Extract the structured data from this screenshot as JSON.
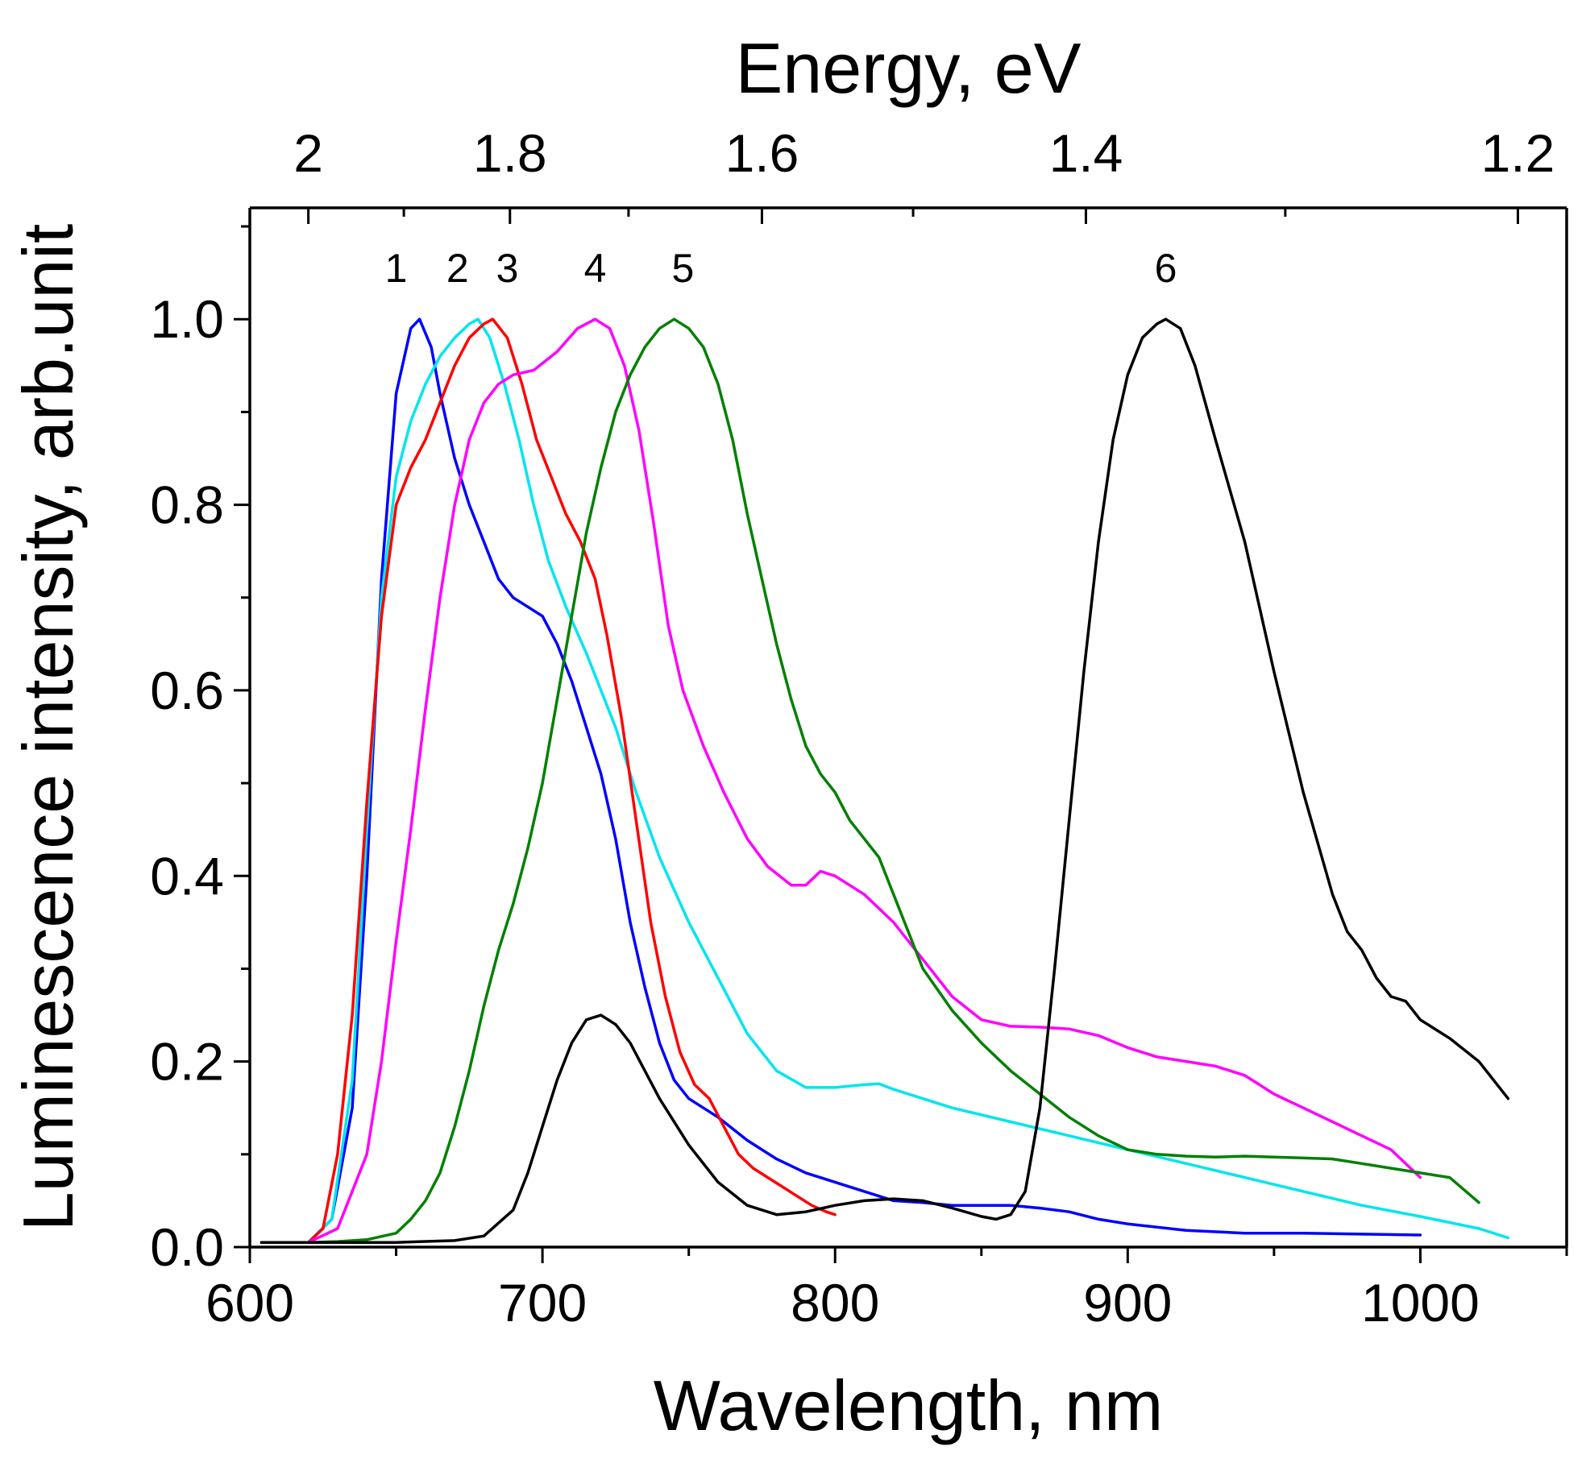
{
  "chart_data": {
    "type": "line",
    "xlabel": "Wavelength, nm",
    "ylabel": "Luminescence intensity, arb.unit",
    "x2label": "Energy, eV",
    "xlim": [
      600,
      1050
    ],
    "ylim": [
      0,
      1.12
    ],
    "x_ticks": [
      "600",
      "700",
      "800",
      "900",
      "1000"
    ],
    "y_ticks": [
      "0.0",
      "0.2",
      "0.4",
      "0.6",
      "0.8",
      "1.0"
    ],
    "x2_ticks": [
      {
        "energy": 2.0,
        "label": "2"
      },
      {
        "energy": 1.8,
        "label": "1.8"
      },
      {
        "energy": 1.6,
        "label": "1.6"
      },
      {
        "energy": 1.4,
        "label": "1.4"
      },
      {
        "energy": 1.2,
        "label": "1.2"
      }
    ],
    "x2_minor_ticks": [
      1.9,
      1.7,
      1.5,
      1.3
    ],
    "grid": false,
    "series": [
      {
        "name": "1",
        "color": "#0000ff",
        "label_x": 650,
        "points": [
          [
            604,
            0.005
          ],
          [
            620,
            0.005
          ],
          [
            628,
            0.03
          ],
          [
            635,
            0.15
          ],
          [
            640,
            0.4
          ],
          [
            645,
            0.72
          ],
          [
            650,
            0.92
          ],
          [
            655,
            0.99
          ],
          [
            658,
            1.0
          ],
          [
            662,
            0.97
          ],
          [
            665,
            0.92
          ],
          [
            670,
            0.85
          ],
          [
            675,
            0.8
          ],
          [
            680,
            0.76
          ],
          [
            685,
            0.72
          ],
          [
            690,
            0.7
          ],
          [
            695,
            0.69
          ],
          [
            700,
            0.68
          ],
          [
            705,
            0.65
          ],
          [
            710,
            0.61
          ],
          [
            715,
            0.56
          ],
          [
            720,
            0.51
          ],
          [
            725,
            0.44
          ],
          [
            730,
            0.35
          ],
          [
            735,
            0.28
          ],
          [
            740,
            0.22
          ],
          [
            745,
            0.18
          ],
          [
            750,
            0.16
          ],
          [
            755,
            0.15
          ],
          [
            760,
            0.14
          ],
          [
            770,
            0.115
          ],
          [
            780,
            0.095
          ],
          [
            790,
            0.08
          ],
          [
            800,
            0.07
          ],
          [
            810,
            0.06
          ],
          [
            820,
            0.05
          ],
          [
            830,
            0.048
          ],
          [
            840,
            0.045
          ],
          [
            850,
            0.045
          ],
          [
            860,
            0.045
          ],
          [
            870,
            0.042
          ],
          [
            880,
            0.038
          ],
          [
            890,
            0.03
          ],
          [
            900,
            0.025
          ],
          [
            920,
            0.018
          ],
          [
            940,
            0.015
          ],
          [
            960,
            0.015
          ],
          [
            980,
            0.014
          ],
          [
            1000,
            0.013
          ]
        ]
      },
      {
        "name": "2",
        "color": "#00e5ee",
        "label_x": 671,
        "points": [
          [
            604,
            0.005
          ],
          [
            620,
            0.005
          ],
          [
            628,
            0.03
          ],
          [
            635,
            0.18
          ],
          [
            640,
            0.45
          ],
          [
            645,
            0.7
          ],
          [
            650,
            0.83
          ],
          [
            655,
            0.89
          ],
          [
            660,
            0.93
          ],
          [
            665,
            0.96
          ],
          [
            670,
            0.98
          ],
          [
            675,
            0.995
          ],
          [
            678,
            1.0
          ],
          [
            682,
            0.98
          ],
          [
            687,
            0.93
          ],
          [
            692,
            0.87
          ],
          [
            697,
            0.8
          ],
          [
            702,
            0.74
          ],
          [
            708,
            0.69
          ],
          [
            715,
            0.64
          ],
          [
            720,
            0.6
          ],
          [
            725,
            0.56
          ],
          [
            732,
            0.49
          ],
          [
            740,
            0.42
          ],
          [
            750,
            0.35
          ],
          [
            760,
            0.29
          ],
          [
            770,
            0.23
          ],
          [
            780,
            0.19
          ],
          [
            790,
            0.172
          ],
          [
            800,
            0.172
          ],
          [
            810,
            0.175
          ],
          [
            815,
            0.176
          ],
          [
            820,
            0.17
          ],
          [
            830,
            0.16
          ],
          [
            840,
            0.15
          ],
          [
            860,
            0.135
          ],
          [
            880,
            0.12
          ],
          [
            900,
            0.105
          ],
          [
            920,
            0.09
          ],
          [
            940,
            0.075
          ],
          [
            960,
            0.06
          ],
          [
            980,
            0.045
          ],
          [
            1000,
            0.033
          ],
          [
            1020,
            0.02
          ],
          [
            1030,
            0.01
          ]
        ]
      },
      {
        "name": "3",
        "color": "#ff0000",
        "label_x": 688,
        "points": [
          [
            604,
            0.005
          ],
          [
            620,
            0.005
          ],
          [
            625,
            0.02
          ],
          [
            630,
            0.1
          ],
          [
            635,
            0.25
          ],
          [
            640,
            0.48
          ],
          [
            645,
            0.68
          ],
          [
            650,
            0.8
          ],
          [
            655,
            0.84
          ],
          [
            660,
            0.87
          ],
          [
            665,
            0.91
          ],
          [
            670,
            0.95
          ],
          [
            675,
            0.98
          ],
          [
            680,
            0.995
          ],
          [
            683,
            1.0
          ],
          [
            688,
            0.98
          ],
          [
            693,
            0.93
          ],
          [
            698,
            0.87
          ],
          [
            703,
            0.83
          ],
          [
            708,
            0.79
          ],
          [
            713,
            0.76
          ],
          [
            718,
            0.72
          ],
          [
            722,
            0.66
          ],
          [
            727,
            0.57
          ],
          [
            732,
            0.46
          ],
          [
            737,
            0.35
          ],
          [
            742,
            0.27
          ],
          [
            747,
            0.21
          ],
          [
            752,
            0.175
          ],
          [
            757,
            0.16
          ],
          [
            762,
            0.13
          ],
          [
            767,
            0.1
          ],
          [
            772,
            0.085
          ],
          [
            777,
            0.075
          ],
          [
            782,
            0.065
          ],
          [
            787,
            0.055
          ],
          [
            792,
            0.045
          ],
          [
            797,
            0.038
          ],
          [
            800,
            0.035
          ]
        ]
      },
      {
        "name": "4",
        "color": "#ff00ff",
        "label_x": 718,
        "points": [
          [
            604,
            0.005
          ],
          [
            620,
            0.005
          ],
          [
            630,
            0.02
          ],
          [
            640,
            0.1
          ],
          [
            645,
            0.2
          ],
          [
            650,
            0.33
          ],
          [
            655,
            0.45
          ],
          [
            660,
            0.58
          ],
          [
            665,
            0.7
          ],
          [
            670,
            0.8
          ],
          [
            675,
            0.87
          ],
          [
            680,
            0.91
          ],
          [
            685,
            0.93
          ],
          [
            690,
            0.94
          ],
          [
            697,
            0.945
          ],
          [
            705,
            0.965
          ],
          [
            712,
            0.99
          ],
          [
            718,
            1.0
          ],
          [
            723,
            0.99
          ],
          [
            728,
            0.95
          ],
          [
            733,
            0.88
          ],
          [
            738,
            0.78
          ],
          [
            743,
            0.67
          ],
          [
            748,
            0.6
          ],
          [
            755,
            0.54
          ],
          [
            762,
            0.49
          ],
          [
            770,
            0.44
          ],
          [
            777,
            0.41
          ],
          [
            785,
            0.39
          ],
          [
            790,
            0.39
          ],
          [
            795,
            0.405
          ],
          [
            800,
            0.4
          ],
          [
            810,
            0.38
          ],
          [
            820,
            0.35
          ],
          [
            830,
            0.31
          ],
          [
            840,
            0.27
          ],
          [
            850,
            0.245
          ],
          [
            860,
            0.238
          ],
          [
            870,
            0.237
          ],
          [
            880,
            0.235
          ],
          [
            890,
            0.228
          ],
          [
            900,
            0.215
          ],
          [
            910,
            0.205
          ],
          [
            920,
            0.2
          ],
          [
            930,
            0.195
          ],
          [
            940,
            0.185
          ],
          [
            950,
            0.165
          ],
          [
            960,
            0.15
          ],
          [
            970,
            0.135
          ],
          [
            980,
            0.12
          ],
          [
            990,
            0.105
          ],
          [
            1000,
            0.075
          ]
        ]
      },
      {
        "name": "5",
        "color": "#008000",
        "label_x": 748,
        "points": [
          [
            604,
            0.005
          ],
          [
            620,
            0.005
          ],
          [
            630,
            0.006
          ],
          [
            640,
            0.008
          ],
          [
            650,
            0.015
          ],
          [
            655,
            0.03
          ],
          [
            660,
            0.05
          ],
          [
            665,
            0.08
          ],
          [
            670,
            0.13
          ],
          [
            675,
            0.19
          ],
          [
            680,
            0.26
          ],
          [
            685,
            0.32
          ],
          [
            690,
            0.37
          ],
          [
            695,
            0.43
          ],
          [
            700,
            0.5
          ],
          [
            705,
            0.59
          ],
          [
            710,
            0.68
          ],
          [
            715,
            0.77
          ],
          [
            720,
            0.84
          ],
          [
            725,
            0.9
          ],
          [
            730,
            0.94
          ],
          [
            735,
            0.97
          ],
          [
            740,
            0.99
          ],
          [
            745,
            1.0
          ],
          [
            750,
            0.99
          ],
          [
            755,
            0.97
          ],
          [
            760,
            0.93
          ],
          [
            765,
            0.87
          ],
          [
            770,
            0.79
          ],
          [
            775,
            0.72
          ],
          [
            780,
            0.65
          ],
          [
            785,
            0.59
          ],
          [
            790,
            0.54
          ],
          [
            795,
            0.51
          ],
          [
            800,
            0.49
          ],
          [
            805,
            0.46
          ],
          [
            810,
            0.44
          ],
          [
            815,
            0.42
          ],
          [
            820,
            0.38
          ],
          [
            825,
            0.34
          ],
          [
            830,
            0.3
          ],
          [
            840,
            0.255
          ],
          [
            850,
            0.22
          ],
          [
            860,
            0.19
          ],
          [
            870,
            0.165
          ],
          [
            880,
            0.14
          ],
          [
            890,
            0.12
          ],
          [
            900,
            0.105
          ],
          [
            910,
            0.1
          ],
          [
            920,
            0.098
          ],
          [
            930,
            0.097
          ],
          [
            940,
            0.098
          ],
          [
            950,
            0.097
          ],
          [
            960,
            0.096
          ],
          [
            970,
            0.095
          ],
          [
            980,
            0.09
          ],
          [
            990,
            0.085
          ],
          [
            1000,
            0.08
          ],
          [
            1010,
            0.075
          ],
          [
            1020,
            0.048
          ]
        ]
      },
      {
        "name": "6",
        "color": "#000000",
        "label_x": 913,
        "points": [
          [
            604,
            0.005
          ],
          [
            650,
            0.005
          ],
          [
            670,
            0.007
          ],
          [
            680,
            0.012
          ],
          [
            690,
            0.04
          ],
          [
            695,
            0.08
          ],
          [
            700,
            0.13
          ],
          [
            705,
            0.18
          ],
          [
            710,
            0.22
          ],
          [
            715,
            0.245
          ],
          [
            720,
            0.25
          ],
          [
            725,
            0.24
          ],
          [
            730,
            0.22
          ],
          [
            735,
            0.19
          ],
          [
            740,
            0.16
          ],
          [
            750,
            0.11
          ],
          [
            760,
            0.07
          ],
          [
            770,
            0.045
          ],
          [
            780,
            0.035
          ],
          [
            790,
            0.038
          ],
          [
            800,
            0.045
          ],
          [
            810,
            0.05
          ],
          [
            820,
            0.052
          ],
          [
            830,
            0.05
          ],
          [
            840,
            0.042
          ],
          [
            850,
            0.033
          ],
          [
            855,
            0.03
          ],
          [
            860,
            0.035
          ],
          [
            865,
            0.06
          ],
          [
            870,
            0.15
          ],
          [
            875,
            0.3
          ],
          [
            880,
            0.46
          ],
          [
            885,
            0.62
          ],
          [
            890,
            0.76
          ],
          [
            895,
            0.87
          ],
          [
            900,
            0.94
          ],
          [
            905,
            0.98
          ],
          [
            910,
            0.995
          ],
          [
            913,
            1.0
          ],
          [
            918,
            0.99
          ],
          [
            923,
            0.95
          ],
          [
            930,
            0.87
          ],
          [
            940,
            0.76
          ],
          [
            950,
            0.62
          ],
          [
            960,
            0.49
          ],
          [
            970,
            0.38
          ],
          [
            975,
            0.34
          ],
          [
            980,
            0.32
          ],
          [
            985,
            0.29
          ],
          [
            990,
            0.27
          ],
          [
            995,
            0.265
          ],
          [
            1000,
            0.245
          ],
          [
            1010,
            0.225
          ],
          [
            1020,
            0.2
          ],
          [
            1030,
            0.16
          ]
        ]
      }
    ]
  }
}
